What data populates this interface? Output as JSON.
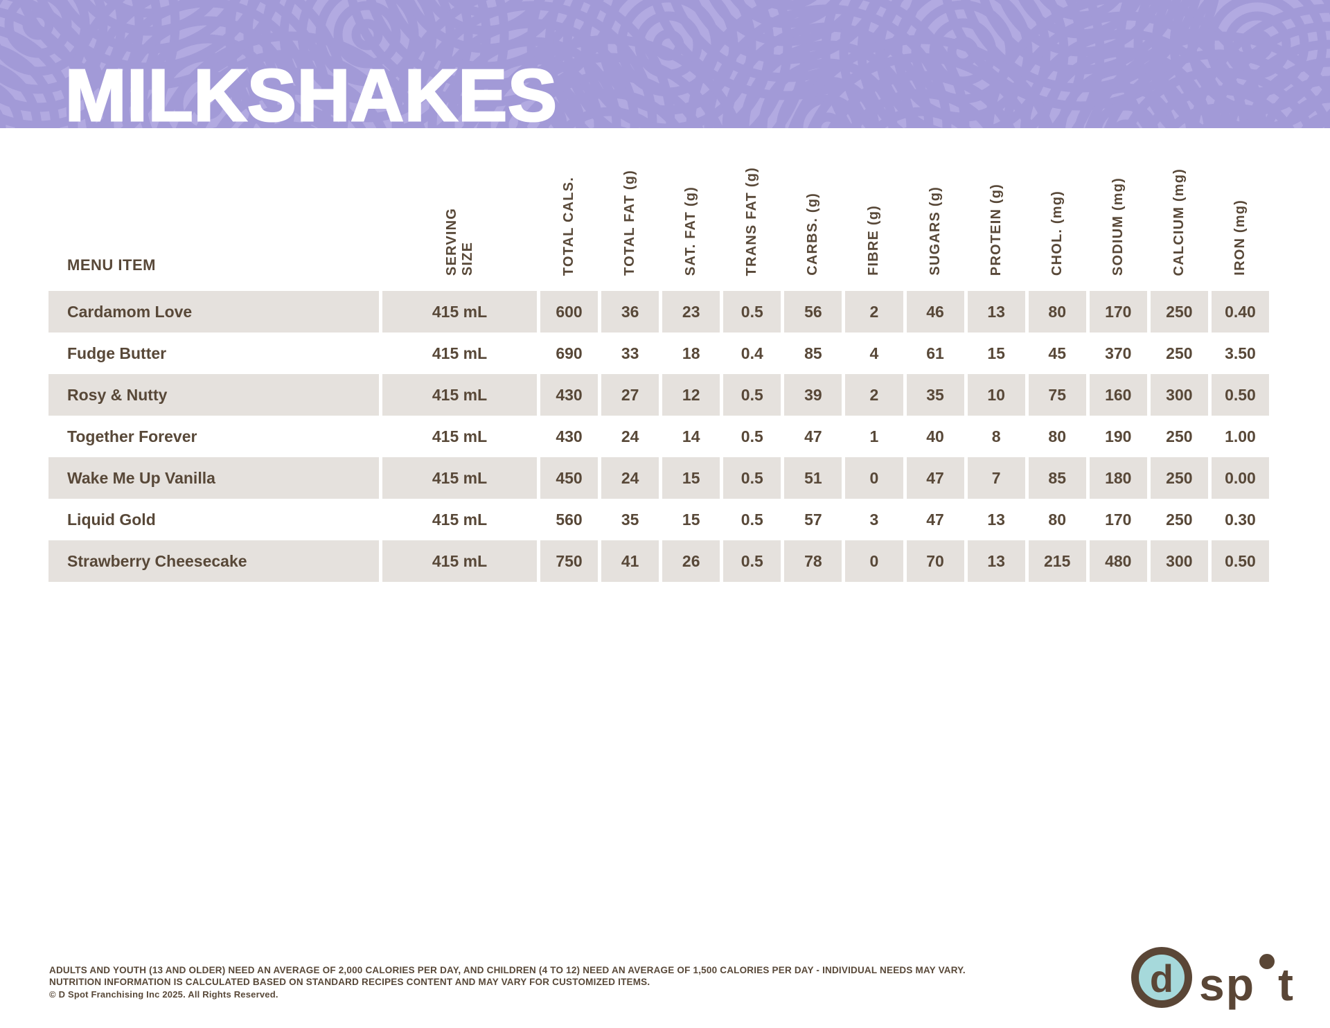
{
  "header": {
    "title": "MILKSHAKES"
  },
  "table": {
    "menu_item_header": "MENU ITEM",
    "columns": [
      "SERVING\nSIZE",
      "TOTAL CALS.",
      "TOTAL FAT (g)",
      "SAT. FAT (g)",
      "TRANS FAT (g)",
      "CARBS. (g)",
      "FIBRE (g)",
      "SUGARS (g)",
      "PROTEIN (g)",
      "CHOL. (mg)",
      "SODIUM (mg)",
      "CALCIUM (mg)",
      "IRON (mg)"
    ],
    "rows": [
      {
        "name": "Cardamom Love",
        "values": [
          "415 mL",
          "600",
          "36",
          "23",
          "0.5",
          "56",
          "2",
          "46",
          "13",
          "80",
          "170",
          "250",
          "0.40"
        ]
      },
      {
        "name": "Fudge Butter",
        "values": [
          "415 mL",
          "690",
          "33",
          "18",
          "0.4",
          "85",
          "4",
          "61",
          "15",
          "45",
          "370",
          "250",
          "3.50"
        ]
      },
      {
        "name": "Rosy & Nutty",
        "values": [
          "415 mL",
          "430",
          "27",
          "12",
          "0.5",
          "39",
          "2",
          "35",
          "10",
          "75",
          "160",
          "300",
          "0.50"
        ]
      },
      {
        "name": "Together Forever",
        "values": [
          "415 mL",
          "430",
          "24",
          "14",
          "0.5",
          "47",
          "1",
          "40",
          "8",
          "80",
          "190",
          "250",
          "1.00"
        ]
      },
      {
        "name": "Wake Me Up Vanilla",
        "values": [
          "415 mL",
          "450",
          "24",
          "15",
          "0.5",
          "51",
          "0",
          "47",
          "7",
          "85",
          "180",
          "250",
          "0.00"
        ]
      },
      {
        "name": "Liquid Gold",
        "values": [
          "415 mL",
          "560",
          "35",
          "15",
          "0.5",
          "57",
          "3",
          "47",
          "13",
          "80",
          "170",
          "250",
          "0.30"
        ]
      },
      {
        "name": "Strawberry Cheesecake",
        "values": [
          "415 mL",
          "750",
          "41",
          "26",
          "0.5",
          "78",
          "0",
          "70",
          "13",
          "215",
          "480",
          "300",
          "0.50"
        ]
      }
    ]
  },
  "footer": {
    "line1": "ADULTS AND YOUTH (13 AND OLDER) NEED AN AVERAGE OF 2,000 CALORIES PER DAY, AND CHILDREN (4 TO 12) NEED AN AVERAGE OF 1,500 CALORIES PER DAY - INDIVIDUAL NEEDS MAY VARY.",
    "line2": "NUTRITION INFORMATION IS CALCULATED BASED ON STANDARD RECIPES CONTENT AND MAY VARY FOR CUSTOMIZED ITEMS.",
    "line3": "© D Spot Franchising Inc 2025. All Rights Reserved."
  },
  "logo": {
    "circle_letter": "d",
    "word_sp": "sp",
    "word_o": "o",
    "word_t": "t"
  },
  "colors": {
    "band_purple": "#b2aae1",
    "band_ring": "#a29ad7",
    "text_brown": "#584838",
    "row_gray": "#e5e1dd",
    "logo_brown": "#5a4636",
    "logo_teal": "#a6d9db",
    "title_white": "#ffffff"
  }
}
